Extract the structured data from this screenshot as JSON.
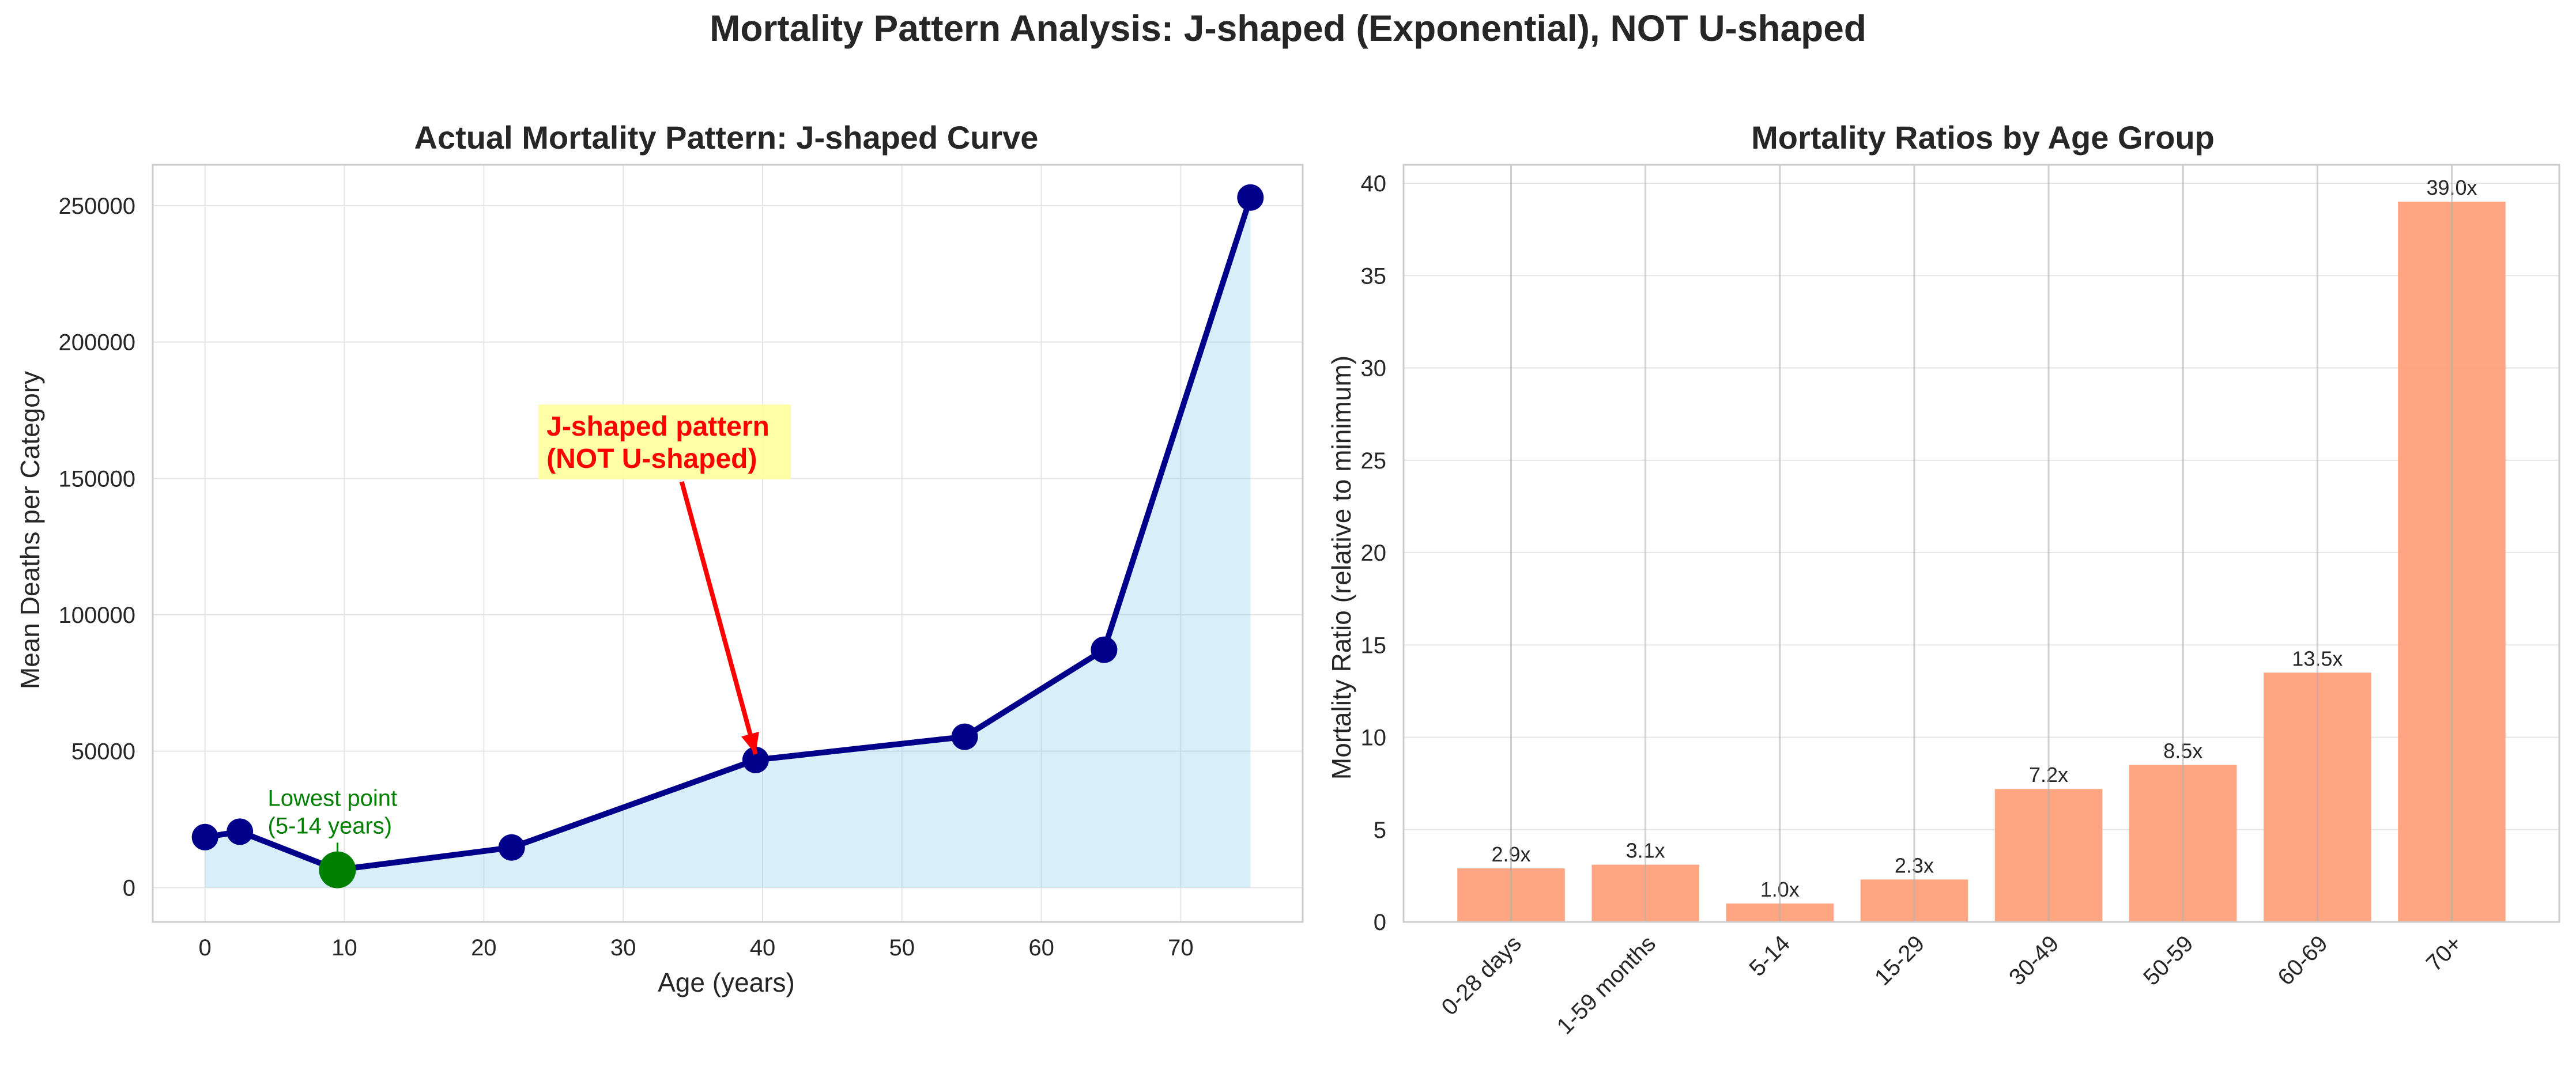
{
  "figure": {
    "title": "Mortality Pattern Analysis: J-shaped (Exponential), NOT U-shaped"
  },
  "chart_data": [
    {
      "type": "line",
      "title": "Actual Mortality Pattern: J-shaped Curve",
      "xlabel": "Age (years)",
      "ylabel": "Mean Deaths per Category",
      "xlim": [
        -3.75,
        78.75
      ],
      "ylim": [
        -12600,
        265000
      ],
      "xticks": [
        0,
        10,
        20,
        30,
        40,
        50,
        60,
        70
      ],
      "yticks": [
        0,
        50000,
        100000,
        150000,
        200000,
        250000
      ],
      "grid": true,
      "fill": true,
      "series": [
        {
          "x": [
            0,
            2.5,
            9.5,
            22,
            39.5,
            54.5,
            64.5,
            75
          ],
          "y": [
            18500,
            20500,
            6500,
            14700,
            46800,
            55300,
            87200,
            253000
          ]
        }
      ],
      "highlight": {
        "x": 9.5,
        "y": 6500
      },
      "annotations": [
        {
          "text_lines": [
            "Lowest point",
            "(5-14 years)"
          ],
          "color": "#008000"
        },
        {
          "text_lines": [
            "J-shaped pattern",
            "(NOT U-shaped)"
          ],
          "color": "#ff0000",
          "box_color": "#ffff99",
          "arrow_to": {
            "x": 39.5,
            "y": 46800
          }
        }
      ],
      "colors": {
        "line": "#00008b",
        "fill": "#87ceeb",
        "highlight": "#008000",
        "arrow": "#ff0000"
      }
    },
    {
      "type": "bar",
      "title": "Mortality Ratios by Age Group",
      "xlabel": "",
      "ylabel": "Mortality Ratio (relative to minimum)",
      "ylim": [
        0,
        41
      ],
      "yticks": [
        0,
        5,
        10,
        15,
        20,
        25,
        30,
        35,
        40
      ],
      "grid": true,
      "categories": [
        "0-28 days",
        "1-59 months",
        "5-14",
        "15-29",
        "30-49",
        "50-59",
        "60-69",
        "70+"
      ],
      "values": [
        2.9,
        3.1,
        1.0,
        2.3,
        7.2,
        8.5,
        13.5,
        39.0
      ],
      "labels": [
        "2.9x",
        "3.1x",
        "1.0x",
        "2.3x",
        "7.2x",
        "8.5x",
        "13.5x",
        "39.0x"
      ],
      "colors": {
        "bar": "#ffa07a"
      }
    }
  ]
}
